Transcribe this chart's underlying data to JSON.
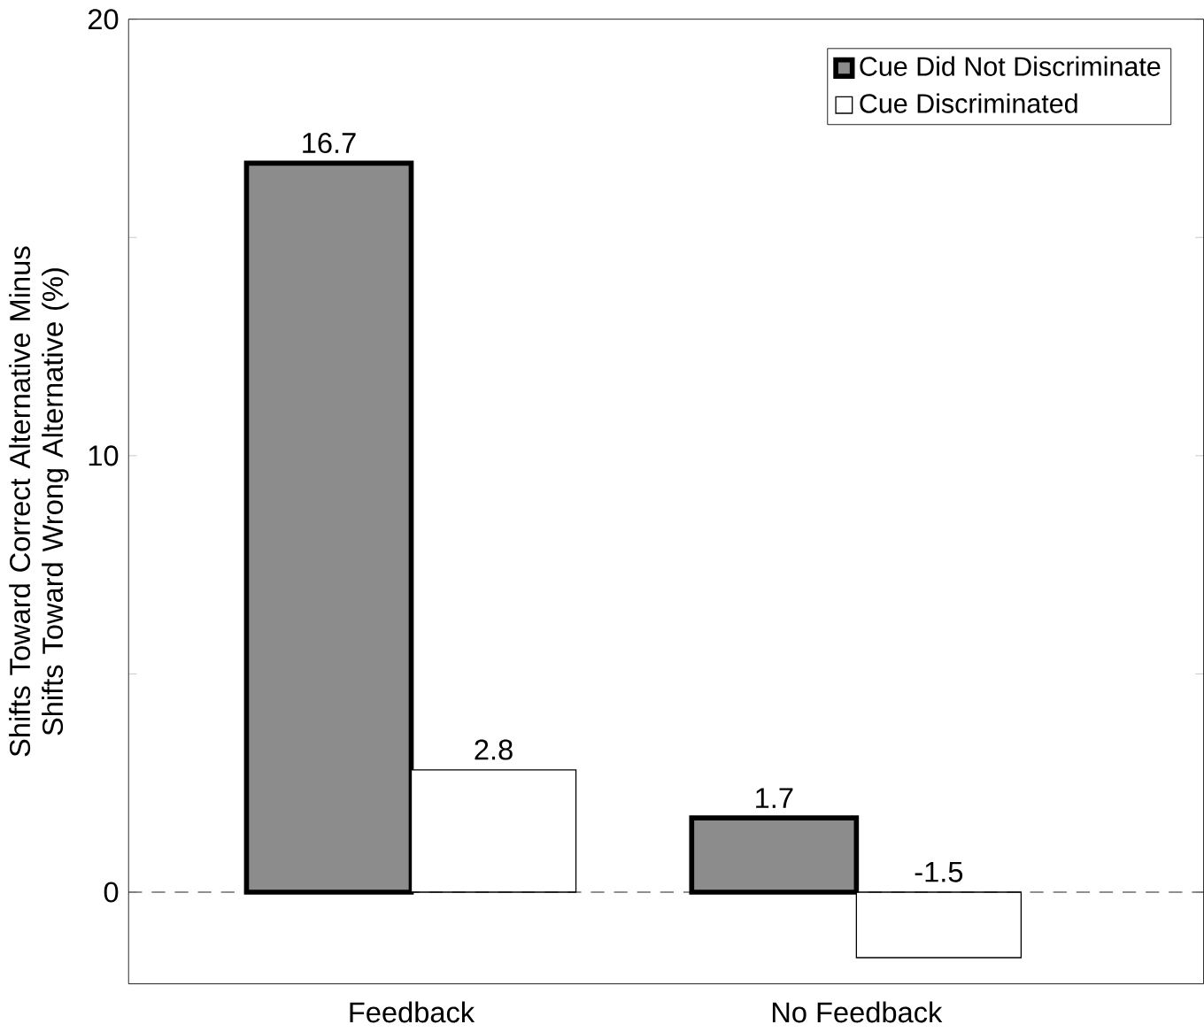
{
  "chart_data": {
    "type": "bar",
    "ylabel": "Shifts Toward Correct Alternative Minus Shifts Toward Wrong Alternative (%)",
    "categories": [
      "Feedback",
      "No Feedback"
    ],
    "series": [
      {
        "name": "Cue Did Not Discriminate",
        "color": "#8c8c8c",
        "values": [
          16.7,
          1.7
        ]
      },
      {
        "name": "Cue Discriminated",
        "color": "#ffffff",
        "values": [
          2.8,
          -1.5
        ]
      }
    ],
    "ylim": [
      -2.1,
      20
    ],
    "yticks": [
      0,
      {
        "value": 5,
        "label": null
      },
      10,
      {
        "value": 15,
        "label": null
      },
      20
    ],
    "ref_lines": [
      {
        "axis": "y",
        "value": 0,
        "line_style": "dashed"
      }
    ],
    "data_labels": true,
    "legend": "top right"
  }
}
